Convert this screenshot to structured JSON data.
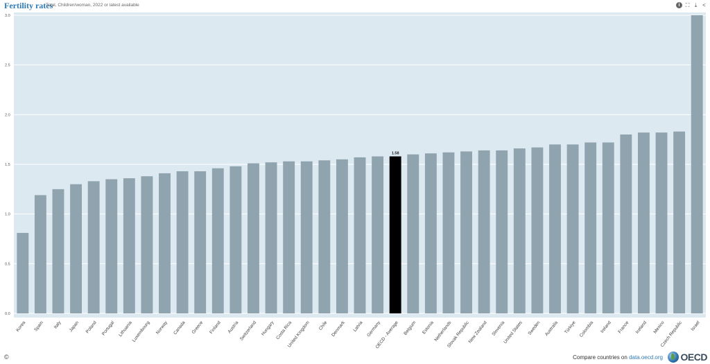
{
  "header": {
    "title": "Fertility rates",
    "subtitle": "Total, Children/woman, 2022 or latest available",
    "tools": {
      "info": "i",
      "expand": "⛶",
      "download": "⤓",
      "share": "<"
    }
  },
  "colors": {
    "plot_background": "#dde9f1",
    "bar": "#90a4b0",
    "highlight_bar": "#000000",
    "title": "#2e7ab6"
  },
  "chart_data": {
    "type": "bar",
    "title": "Fertility rates",
    "subtitle": "Total, Children/woman, 2022 or latest available",
    "categories": [
      "Korea",
      "Spain",
      "Italy",
      "Japan",
      "Poland",
      "Portugal",
      "Lithuania",
      "Luxembourg",
      "Norway",
      "Canada",
      "Greece",
      "Finland",
      "Austria",
      "Switzerland",
      "Hungary",
      "Costa Rica",
      "United Kingdom",
      "Chile",
      "Denmark",
      "Latvia",
      "Germany",
      "OECD - Average",
      "Belgium",
      "Estonia",
      "Netherlands",
      "Slovak Republic",
      "New Zealand",
      "Slovenia",
      "United States",
      "Sweden",
      "Australia",
      "Türkiye",
      "Colombia",
      "Ireland",
      "France",
      "Iceland",
      "Mexico",
      "Czech Republic",
      "Israel"
    ],
    "values": [
      0.81,
      1.19,
      1.25,
      1.3,
      1.33,
      1.35,
      1.36,
      1.38,
      1.41,
      1.43,
      1.43,
      1.46,
      1.48,
      1.51,
      1.52,
      1.53,
      1.53,
      1.54,
      1.55,
      1.57,
      1.58,
      1.58,
      1.6,
      1.61,
      1.62,
      1.63,
      1.64,
      1.64,
      1.66,
      1.67,
      1.7,
      1.7,
      1.72,
      1.72,
      1.8,
      1.82,
      1.82,
      1.83,
      3.0
    ],
    "highlight": "OECD - Average",
    "highlight_label": "1.58",
    "ylim": [
      0,
      3.0
    ],
    "yticks": [
      "0.0",
      "0.5",
      "1.0",
      "1.5",
      "2.0",
      "2.5",
      "3.0"
    ],
    "grid": true,
    "xlabel": "",
    "ylabel": ""
  },
  "footer": {
    "copyright": "©",
    "compare_text": "Compare countries on ",
    "compare_link": "data.oecd.org",
    "logo_text": "OECD"
  }
}
